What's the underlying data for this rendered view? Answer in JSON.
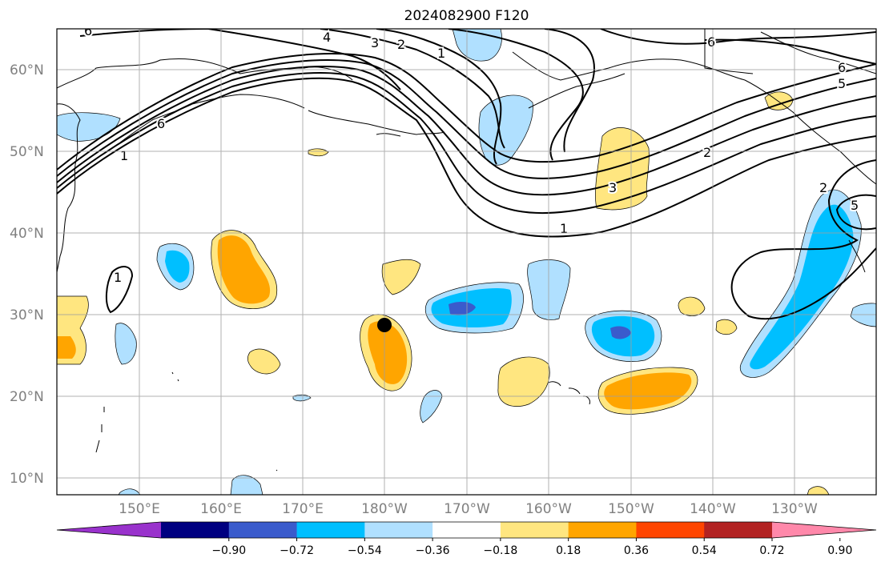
{
  "title": "2024082900 F120",
  "lat_labels": [
    "60°N",
    "50°N",
    "40°N",
    "30°N",
    "20°N",
    "10°N"
  ],
  "lon_labels": [
    "150°E",
    "160°E",
    "170°E",
    "180°W",
    "170°W",
    "160°W",
    "150°W",
    "140°W",
    "130°W"
  ],
  "contour_labels": [
    "6",
    "4",
    "3",
    "2",
    "1",
    "6",
    "5",
    "2",
    "3",
    "1",
    "1",
    "2",
    "5",
    "6",
    "1",
    "6"
  ],
  "colorbar": {
    "ticks": [
      "−0.90",
      "−0.72",
      "−0.54",
      "−0.36",
      "−0.18",
      "0.18",
      "0.36",
      "0.54",
      "0.72",
      "0.90"
    ],
    "colors": [
      "#9932CC",
      "#000080",
      "#3A5BCC",
      "#00BFFF",
      "#B0E0FF",
      "#FFFFFF",
      "#FFE680",
      "#FFA500",
      "#FF4500",
      "#B22222",
      "#FF88AA"
    ]
  },
  "marker": {
    "label": "storm-center",
    "lat": 28.8,
    "lon": 180
  }
}
